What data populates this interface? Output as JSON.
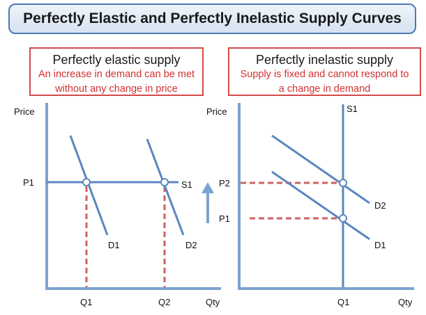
{
  "title": "Perfectly Elastic and Perfectly Inelastic Supply Curves",
  "left_panel": {
    "heading": "Perfectly elastic supply",
    "description_line1": "An increase in demand can be met",
    "description_line2": "without any change in price",
    "y_axis_label": "Price",
    "x_axis_label": "Qty",
    "price_label": "P1",
    "supply_label": "S1",
    "demand_labels": [
      "D1",
      "D2"
    ],
    "quantity_labels": [
      "Q1",
      "Q2"
    ]
  },
  "right_panel": {
    "heading": "Perfectly inelastic supply",
    "description_line1": "Supply is fixed and cannot respond to",
    "description_line2": "a change in demand",
    "y_axis_label": "Price",
    "x_axis_label": "Qty",
    "price_labels": [
      "P2",
      "P1"
    ],
    "supply_label": "S1",
    "demand_labels": [
      "D2",
      "D1"
    ],
    "quantity_label": "Q1"
  },
  "colors": {
    "axis": "#7ba3d0",
    "curve": "#5b86c0",
    "dashed": "#d06060",
    "border_red": "#d24a4a",
    "title_border": "#4a7ab0",
    "arrow": "#7ba3d0"
  }
}
